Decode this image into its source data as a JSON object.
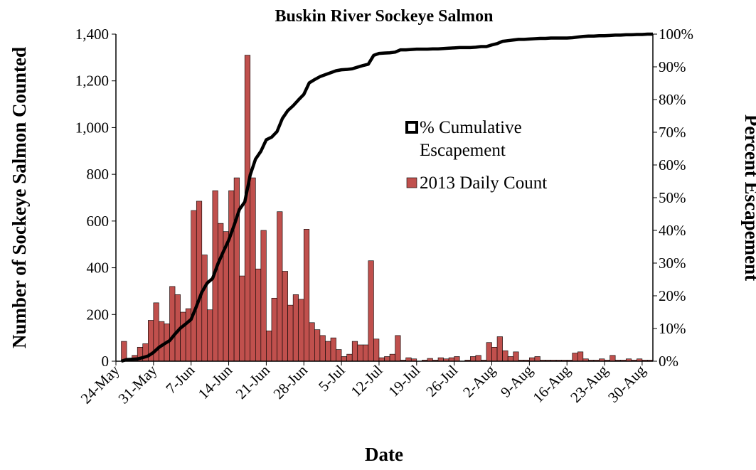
{
  "chart_data": {
    "type": "bar",
    "title": "Buskin River Sockeye Salmon",
    "x_label": "Date",
    "y_label": "Number of Sockeye Salmon Counted",
    "y2_label": "Percent Escapement",
    "categories": [
      "24-May",
      null,
      null,
      null,
      null,
      null,
      null,
      "31-May",
      null,
      null,
      null,
      null,
      null,
      null,
      "7-Jun",
      null,
      null,
      null,
      null,
      null,
      null,
      "14-Jun",
      null,
      null,
      null,
      null,
      null,
      null,
      "21-Jun",
      null,
      null,
      null,
      null,
      null,
      null,
      "28-Jun",
      null,
      null,
      null,
      null,
      null,
      null,
      "5-Jul",
      null,
      null,
      null,
      null,
      null,
      null,
      "12-Jul",
      null,
      null,
      null,
      null,
      null,
      null,
      "19-Jul",
      null,
      null,
      null,
      null,
      null,
      null,
      "26-Jul",
      null,
      null,
      null,
      null,
      null,
      null,
      "2-Aug",
      null,
      null,
      null,
      null,
      null,
      null,
      "9-Aug",
      null,
      null,
      null,
      null,
      null,
      null,
      "16-Aug",
      null,
      null,
      null,
      null,
      null,
      null,
      "23-Aug",
      null,
      null,
      null,
      null,
      null,
      null,
      "30-Aug",
      null
    ],
    "series": [
      {
        "name": "2013 Daily Count",
        "type": "bar",
        "color": "#c0504d",
        "values": [
          0,
          85,
          10,
          25,
          60,
          75,
          175,
          250,
          170,
          160,
          320,
          285,
          210,
          225,
          645,
          685,
          455,
          220,
          730,
          590,
          555,
          730,
          785,
          365,
          1310,
          785,
          395,
          560,
          130,
          270,
          640,
          385,
          240,
          285,
          265,
          565,
          165,
          135,
          110,
          85,
          100,
          50,
          20,
          30,
          85,
          70,
          70,
          430,
          95,
          15,
          20,
          30,
          110,
          5,
          15,
          10,
          0,
          5,
          12,
          5,
          15,
          10,
          15,
          20,
          0,
          5,
          20,
          25,
          5,
          80,
          60,
          105,
          45,
          20,
          40,
          5,
          5,
          15,
          20,
          5,
          5,
          5,
          5,
          5,
          5,
          35,
          40,
          10,
          5,
          5,
          10,
          5,
          25,
          5,
          5,
          10,
          5,
          10,
          5,
          5
        ]
      },
      {
        "name": "% Cumulative Escapement",
        "type": "line",
        "axis": "y2",
        "color": "#000000",
        "values": [
          0,
          0.5,
          0.6,
          0.7,
          1.1,
          1.6,
          2.7,
          4.2,
          5.3,
          6.3,
          8.3,
          10.1,
          11.4,
          12.8,
          16.8,
          21.1,
          23.9,
          25.3,
          29.8,
          33.5,
          37.0,
          41.5,
          46.4,
          48.7,
          56.9,
          61.8,
          64.2,
          67.7,
          68.5,
          70.2,
          74.2,
          76.6,
          78.1,
          79.9,
          81.6,
          85.1,
          86.1,
          87.0,
          87.6,
          88.2,
          88.8,
          89.1,
          89.2,
          89.4,
          89.9,
          90.4,
          90.8,
          93.5,
          94.1,
          94.2,
          94.3,
          94.5,
          95.2,
          95.2,
          95.3,
          95.4,
          95.4,
          95.4,
          95.5,
          95.5,
          95.6,
          95.7,
          95.8,
          95.9,
          95.9,
          95.9,
          96.0,
          96.2,
          96.2,
          96.7,
          97.1,
          97.8,
          98.0,
          98.2,
          98.4,
          98.4,
          98.5,
          98.6,
          98.7,
          98.7,
          98.8,
          98.8,
          98.8,
          98.8,
          98.9,
          99.1,
          99.3,
          99.4,
          99.4,
          99.5,
          99.5,
          99.6,
          99.7,
          99.7,
          99.8,
          99.8,
          99.9,
          99.9,
          100,
          100
        ]
      }
    ],
    "ylim": [
      0,
      1400
    ],
    "yticks": [
      0,
      200,
      400,
      600,
      800,
      {
        "value": 1000,
        "label": "1,000"
      },
      {
        "value": 1200,
        "label": "1,200"
      },
      {
        "value": 1400,
        "label": "1,400"
      }
    ],
    "y2lim": [
      0,
      100
    ],
    "y2ticks": [
      {
        "value": 0,
        "label": "0%"
      },
      {
        "value": 10,
        "label": "10%"
      },
      {
        "value": 20,
        "label": "20%"
      },
      {
        "value": 30,
        "label": "30%"
      },
      {
        "value": 40,
        "label": "40%"
      },
      {
        "value": 50,
        "label": "50%"
      },
      {
        "value": 60,
        "label": "60%"
      },
      {
        "value": 70,
        "label": "70%"
      },
      {
        "value": 80,
        "label": "80%"
      },
      {
        "value": 90,
        "label": "90%"
      },
      {
        "value": 100,
        "label": "100%"
      }
    ],
    "grid": false,
    "legend": "right"
  }
}
